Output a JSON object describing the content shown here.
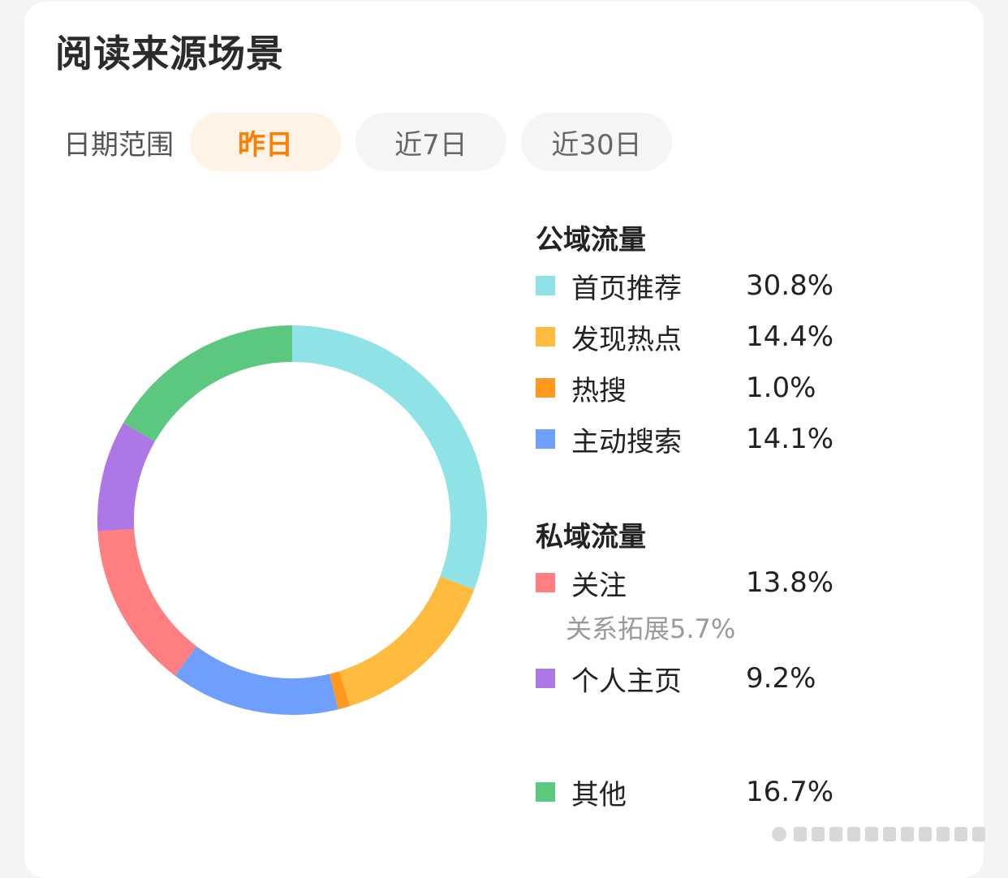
{
  "title": "阅读来源场景",
  "date_filter": {
    "label": "日期范围",
    "options": [
      "昨日",
      "近7日",
      "近30日"
    ],
    "selected": "昨日"
  },
  "legend": {
    "public_title": "公域流量",
    "private_title": "私域流量",
    "sub_note": "关系拓展5.7%"
  },
  "chart_data": {
    "type": "pie",
    "variant": "donut",
    "start_angle": "top",
    "direction": "clockwise",
    "slices": [
      {
        "name": "首页推荐",
        "value": 30.8,
        "label": "30.8%",
        "group": "公域流量",
        "color": "#8fe2e6"
      },
      {
        "name": "发现热点",
        "value": 14.4,
        "label": "14.4%",
        "group": "公域流量",
        "color": "#ffbb3d"
      },
      {
        "name": "热搜",
        "value": 1.0,
        "label": "1.0%",
        "group": "公域流量",
        "color": "#ff981f"
      },
      {
        "name": "主动搜索",
        "value": 14.1,
        "label": "14.1%",
        "group": "公域流量",
        "color": "#6f9ffc"
      },
      {
        "name": "关注",
        "value": 13.8,
        "label": "13.8%",
        "group": "私域流量",
        "color": "#ff7f80"
      },
      {
        "name": "个人主页",
        "value": 9.2,
        "label": "9.2%",
        "group": "私域流量",
        "color": "#ae77e6"
      },
      {
        "name": "其他",
        "value": 16.7,
        "label": "16.7%",
        "group": "",
        "color": "#5cc77f"
      }
    ]
  }
}
